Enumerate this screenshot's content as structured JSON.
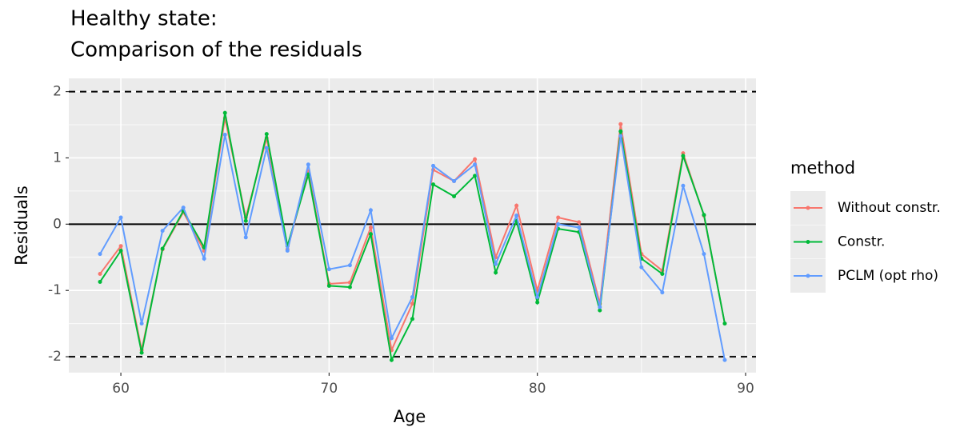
{
  "chart_data": {
    "type": "line",
    "title": [
      "Healthy state:",
      "Comparison of the residuals"
    ],
    "x_label": "Age",
    "y_label": "Residuals",
    "legend_title": "method",
    "legend_position": "right",
    "x": [
      59,
      60,
      61,
      62,
      63,
      64,
      65,
      66,
      67,
      68,
      69,
      70,
      71,
      72,
      73,
      74,
      75,
      76,
      77,
      78,
      79,
      80,
      81,
      82,
      83,
      84,
      85,
      86,
      87,
      88,
      89
    ],
    "series": [
      {
        "name": "Without constr.",
        "color": "#f8766d",
        "values": [
          -0.75,
          -0.33,
          -1.9,
          -0.38,
          0.18,
          -0.4,
          1.6,
          0.1,
          1.3,
          -0.38,
          0.8,
          -0.9,
          -0.88,
          -0.05,
          -1.9,
          -1.2,
          0.82,
          0.65,
          0.98,
          -0.5,
          0.28,
          -1.0,
          0.1,
          0.03,
          -1.2,
          1.51,
          -0.45,
          -0.7,
          1.07,
          0.13,
          -1.5
        ]
      },
      {
        "name": "Constr.",
        "color": "#00ba38",
        "values": [
          -0.87,
          -0.4,
          -1.94,
          -0.37,
          0.2,
          -0.35,
          1.68,
          0.05,
          1.36,
          -0.33,
          0.75,
          -0.93,
          -0.95,
          -0.15,
          -2.05,
          -1.43,
          0.6,
          0.42,
          0.73,
          -0.73,
          0.05,
          -1.18,
          -0.07,
          -0.12,
          -1.3,
          1.4,
          -0.52,
          -0.75,
          1.03,
          0.14,
          -1.5
        ]
      },
      {
        "name": "PCLM (opt rho)",
        "color": "#619cff",
        "values": [
          -0.45,
          0.1,
          -1.5,
          -0.1,
          0.25,
          -0.52,
          1.35,
          -0.2,
          1.15,
          -0.4,
          0.9,
          -0.68,
          -0.62,
          0.21,
          -1.72,
          -1.1,
          0.88,
          0.65,
          0.9,
          -0.6,
          0.13,
          -1.1,
          0.0,
          -0.05,
          -1.25,
          1.33,
          -0.65,
          -1.03,
          0.58,
          -0.45,
          -2.05
        ]
      }
    ],
    "reference_lines": [
      {
        "y": -2,
        "style": "dashed"
      },
      {
        "y": 0,
        "style": "solid"
      },
      {
        "y": 2,
        "style": "dashed"
      }
    ],
    "xlim": [
      57.5,
      90.5
    ],
    "xticks": [
      60,
      70,
      80,
      90
    ],
    "ylim": [
      -2.24,
      2.2
    ],
    "yticks": [
      -2,
      -1,
      0,
      1,
      2
    ],
    "grid": true
  }
}
